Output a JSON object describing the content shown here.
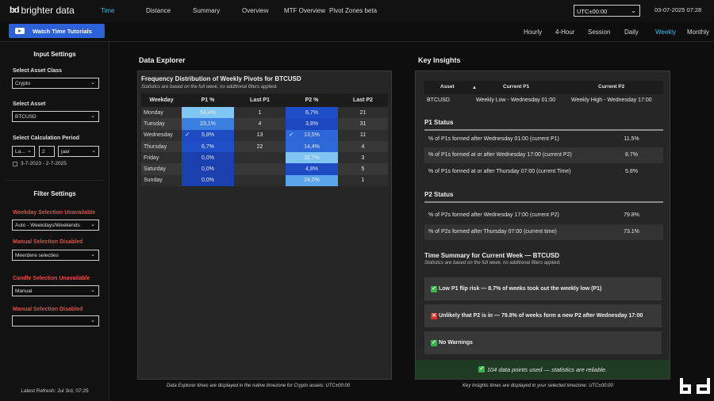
{
  "app": {
    "logo_mark": "bd",
    "logo_text": "brighter data"
  },
  "nav": {
    "tabs": [
      "Time",
      "Distance",
      "Summary",
      "Overview",
      "MTF Overview",
      "Pivot Zones beta"
    ],
    "active": "Time",
    "timezone": "UTC±00:00",
    "datetime": "03-07-2025 07:28"
  },
  "tutorial_button": "Watch Time Tutorials",
  "periods": {
    "tabs": [
      "Hourly",
      "4-Hour",
      "Session",
      "Daily",
      "Weekly",
      "Monthly"
    ],
    "active": "Weekly"
  },
  "sidebar": {
    "input_settings_title": "Input Settings",
    "asset_class_label": "Select Asset Class",
    "asset_class_value": "Crypto",
    "asset_label": "Select Asset",
    "asset_value": "BTCUSD",
    "calc_period_label": "Select Calculation Period",
    "calc_mode": "La...",
    "calc_number": "2",
    "calc_unit": "jaar",
    "date_range": "3-7-2023 - 2-7-2025",
    "filter_settings_title": "Filter Settings",
    "weekday_label": "Weekday Selection Unavailable",
    "weekday_value": "Auto - Weekdays/Weekends",
    "manual_label": "Manual Selection Disabled",
    "manual_value": "Meerdere selecties",
    "candle_label": "Candle Selection Unavailable",
    "candle_value": "Manual",
    "manual2_label": "Manual Selection Disabled",
    "manual2_value": "",
    "latest_refresh": "Latest Refresh: Jul 3rd, 07:25"
  },
  "data_explorer": {
    "section_title": "Data Explorer",
    "title": "Frequency Distribution of  Weekly Pivots for BTCUSD",
    "subtitle": "Statistics are based on the full week, no additional filters applied.",
    "columns": [
      "Weekday",
      "P1 %",
      "Last P1",
      "P2 %",
      "Last P2"
    ],
    "rows": [
      {
        "day": "Monday",
        "p1": "64,4%",
        "last_p1": "1",
        "p2": "6,7%",
        "last_p2": "21",
        "p1_color": "#7fc6f3",
        "p2_color": "#1f4ec8",
        "p1_check": false,
        "p2_check": false
      },
      {
        "day": "Tuesday",
        "p1": "23,1%",
        "last_p1": "4",
        "p2": "3,8%",
        "last_p2": "31",
        "p1_color": "#3a7fe0",
        "p2_color": "#1d47c0",
        "p1_check": false,
        "p2_check": false
      },
      {
        "day": "Wednesday",
        "p1": "5,8%",
        "last_p1": "13",
        "p2": "13,5%",
        "last_p2": "11",
        "p1_color": "#1e4bc4",
        "p2_color": "#2c66d8",
        "p1_check": true,
        "p2_check": true
      },
      {
        "day": "Thursday",
        "p1": "6,7%",
        "last_p1": "22",
        "p2": "14,4%",
        "last_p2": "4",
        "p1_color": "#1f4ec8",
        "p2_color": "#2e69da",
        "p1_check": false,
        "p2_check": false
      },
      {
        "day": "Friday",
        "p1": "0,0%",
        "last_p1": "",
        "p2": "32,7%",
        "last_p2": "3",
        "p1_color": "#1a3fae",
        "p2_color": "#7fc6f3",
        "p1_check": false,
        "p2_check": false
      },
      {
        "day": "Saturday",
        "p1": "0,0%",
        "last_p1": "",
        "p2": "4,8%",
        "last_p2": "5",
        "p1_color": "#1a3fae",
        "p2_color": "#1e4ac3",
        "p1_check": false,
        "p2_check": false
      },
      {
        "day": "Sunday",
        "p1": "0,0%",
        "last_p1": "",
        "p2": "24,0%",
        "last_p2": "1",
        "p1_color": "#1a3fae",
        "p2_color": "#5aa6ee",
        "p1_check": false,
        "p2_check": false
      }
    ],
    "footnote": "Data Explorer times are displayed in the native timezone for Crypto assets: UTC±00:00"
  },
  "key_insights": {
    "section_title": "Key Insights",
    "columns": [
      "Asset",
      "Current P1",
      "Current P2"
    ],
    "asset": "BTCUSD",
    "current_p1": "Weekly Low - Wednesday 01:00",
    "current_p2": "Weekly High - Wednesday 17:00",
    "p1_status_title": "P1 Status",
    "p1_stats": [
      {
        "text": "% of P1s formed after Wednesday 01:00 (current P1)",
        "value": "11.5%"
      },
      {
        "text": "% of P1s formed at or after Wednesday 17:00 (current P2)",
        "value": "8.7%"
      },
      {
        "text": "% of P1s formed at or after Thursday 07:00 (current Time)",
        "value": "5.8%"
      }
    ],
    "p2_status_title": "P2 Status",
    "p2_stats": [
      {
        "text": "% of P2s formed after Wednesday 17:00 (current P2)",
        "value": "79.8%"
      },
      {
        "text": "% of P2s formed after Thursday 07:00 (current time)",
        "value": "73.1%"
      }
    ],
    "summary_title": "Time Summary for Current Week — BTCUSD",
    "summary_subtitle": "Statistics are based on the full week, no additional filters applied.",
    "alerts": [
      {
        "icon": "green-check",
        "text": "Low P1 flip risk — 8.7% of weeks took out the weekly low (P1)"
      },
      {
        "icon": "red-cross",
        "text": "Unlikely that P2 is in — 79.8% of weeks form a new P2 after Wednesday 17:00"
      },
      {
        "icon": "green-check",
        "text": "No Warnings"
      }
    ],
    "reliability": "104 data points used — statistics are reliable.",
    "footnote": "Key Insights times are displayed in your selected timezone: UTC±00:00"
  },
  "colors": {
    "accent": "#41b8f0",
    "button": "#2c61d8",
    "warning_red": "#e0504a",
    "success_green": "#3cb24a"
  }
}
